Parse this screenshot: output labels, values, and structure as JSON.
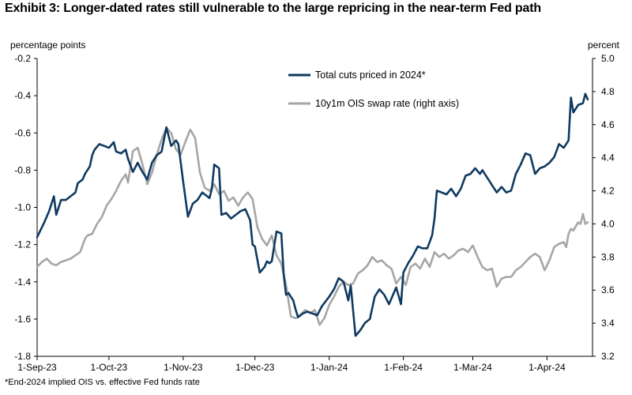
{
  "title": "Exhibit 3:  Longer-dated rates still vulnerable to the large repricing in the near-term Fed path",
  "footnote": "*End-2024 implied OIS vs. effective Fed funds rate",
  "colors": {
    "navy": "#0f3a61",
    "gray": "#a6a6a6",
    "axis": "#000000"
  },
  "chart_data": {
    "type": "line",
    "left_axis": {
      "label": "percentage points",
      "ylim": [
        -1.8,
        -0.2
      ],
      "ticks": [
        "-0.2",
        "-0.4",
        "-0.6",
        "-0.8",
        "-1.0",
        "-1.2",
        "-1.4",
        "-1.6",
        "-1.8"
      ]
    },
    "right_axis": {
      "label": "percent",
      "ylim": [
        3.2,
        5.0
      ],
      "ticks": [
        "5.0",
        "4.8",
        "4.6",
        "4.4",
        "4.2",
        "4.0",
        "3.8",
        "3.6",
        "3.4",
        "3.2"
      ]
    },
    "x_axis": {
      "type": "date",
      "range": [
        "2023-09-01",
        "2024-04-20"
      ],
      "ticks": [
        "1-Sep-23",
        "1-Oct-23",
        "1-Nov-23",
        "1-Dec-23",
        "1-Jan-24",
        "1-Feb-24",
        "1-Mar-24",
        "1-Apr-24"
      ]
    },
    "legend_position": "top-center",
    "grid": false,
    "series": [
      {
        "name": "Total cuts priced in 2024*",
        "axis": "left",
        "color": "#0f3a61",
        "points": [
          [
            "2023-09-01",
            -1.16
          ],
          [
            "2023-09-04",
            -1.08
          ],
          [
            "2023-09-06",
            -1.02
          ],
          [
            "2023-09-08",
            -0.94
          ],
          [
            "2023-09-09",
            -1.04
          ],
          [
            "2023-09-11",
            -0.96
          ],
          [
            "2023-09-13",
            -0.96
          ],
          [
            "2023-09-15",
            -0.94
          ],
          [
            "2023-09-17",
            -0.92
          ],
          [
            "2023-09-18",
            -0.87
          ],
          [
            "2023-09-20",
            -0.85
          ],
          [
            "2023-09-21",
            -0.82
          ],
          [
            "2023-09-23",
            -0.78
          ],
          [
            "2023-09-24",
            -0.72
          ],
          [
            "2023-09-25",
            -0.69
          ],
          [
            "2023-09-27",
            -0.66
          ],
          [
            "2023-09-29",
            -0.67
          ],
          [
            "2023-10-01",
            -0.68
          ],
          [
            "2023-10-03",
            -0.65
          ],
          [
            "2023-10-04",
            -0.7
          ],
          [
            "2023-10-06",
            -0.71
          ],
          [
            "2023-10-08",
            -0.69
          ],
          [
            "2023-10-09",
            -0.74
          ],
          [
            "2023-10-11",
            -0.81
          ],
          [
            "2023-10-13",
            -0.76
          ],
          [
            "2023-10-15",
            -0.81
          ],
          [
            "2023-10-17",
            -0.85
          ],
          [
            "2023-10-19",
            -0.76
          ],
          [
            "2023-10-21",
            -0.72
          ],
          [
            "2023-10-23",
            -0.7
          ],
          [
            "2023-10-25",
            -0.57
          ],
          [
            "2023-10-27",
            -0.67
          ],
          [
            "2023-10-29",
            -0.64
          ],
          [
            "2023-10-30",
            -0.66
          ],
          [
            "2023-11-01",
            -0.86
          ],
          [
            "2023-11-03",
            -1.05
          ],
          [
            "2023-11-05",
            -0.98
          ],
          [
            "2023-11-07",
            -0.96
          ],
          [
            "2023-11-09",
            -0.92
          ],
          [
            "2023-11-10",
            -0.93
          ],
          [
            "2023-11-12",
            -0.95
          ],
          [
            "2023-11-13",
            -0.9
          ],
          [
            "2023-11-14",
            -0.77
          ],
          [
            "2023-11-16",
            -0.79
          ],
          [
            "2023-11-17",
            -1.04
          ],
          [
            "2023-11-19",
            -1.03
          ],
          [
            "2023-11-21",
            -1.06
          ],
          [
            "2023-11-23",
            -1.04
          ],
          [
            "2023-11-25",
            -1.02
          ],
          [
            "2023-11-27",
            -1.01
          ],
          [
            "2023-11-29",
            -1.07
          ],
          [
            "2023-11-30",
            -1.2
          ],
          [
            "2023-12-01",
            -1.21
          ],
          [
            "2023-12-03",
            -1.35
          ],
          [
            "2023-12-05",
            -1.32
          ],
          [
            "2023-12-06",
            -1.29
          ],
          [
            "2023-12-07",
            -1.3
          ],
          [
            "2023-12-08",
            -1.29
          ],
          [
            "2023-12-10",
            -1.13
          ],
          [
            "2023-12-12",
            -1.14
          ],
          [
            "2023-12-13",
            -1.36
          ],
          [
            "2023-12-14",
            -1.47
          ],
          [
            "2023-12-15",
            -1.46
          ],
          [
            "2023-12-17",
            -1.5
          ],
          [
            "2023-12-18",
            -1.55
          ],
          [
            "2023-12-19",
            -1.59
          ],
          [
            "2023-12-21",
            -1.57
          ],
          [
            "2023-12-23",
            -1.56
          ],
          [
            "2023-12-25",
            -1.57
          ],
          [
            "2023-12-27",
            -1.58
          ],
          [
            "2023-12-29",
            -1.53
          ],
          [
            "2024-01-01",
            -1.48
          ],
          [
            "2024-01-03",
            -1.44
          ],
          [
            "2024-01-05",
            -1.38
          ],
          [
            "2024-01-07",
            -1.4
          ],
          [
            "2024-01-09",
            -1.5
          ],
          [
            "2024-01-10",
            -1.42
          ],
          [
            "2024-01-12",
            -1.69
          ],
          [
            "2024-01-14",
            -1.66
          ],
          [
            "2024-01-16",
            -1.62
          ],
          [
            "2024-01-18",
            -1.6
          ],
          [
            "2024-01-20",
            -1.48
          ],
          [
            "2024-01-22",
            -1.44
          ],
          [
            "2024-01-24",
            -1.47
          ],
          [
            "2024-01-26",
            -1.52
          ],
          [
            "2024-01-29",
            -1.43
          ],
          [
            "2024-01-31",
            -1.52
          ],
          [
            "2024-02-01",
            -1.35
          ],
          [
            "2024-02-03",
            -1.3
          ],
          [
            "2024-02-05",
            -1.26
          ],
          [
            "2024-02-07",
            -1.21
          ],
          [
            "2024-02-09",
            -1.22
          ],
          [
            "2024-02-11",
            -1.22
          ],
          [
            "2024-02-13",
            -1.15
          ],
          [
            "2024-02-14",
            -1.06
          ],
          [
            "2024-02-15",
            -0.91
          ],
          [
            "2024-02-17",
            -0.92
          ],
          [
            "2024-02-19",
            -0.93
          ],
          [
            "2024-02-21",
            -0.9
          ],
          [
            "2024-02-23",
            -0.94
          ],
          [
            "2024-02-25",
            -0.9
          ],
          [
            "2024-02-27",
            -0.83
          ],
          [
            "2024-02-29",
            -0.82
          ],
          [
            "2024-03-02",
            -0.79
          ],
          [
            "2024-03-04",
            -0.82
          ],
          [
            "2024-03-05",
            -0.8
          ],
          [
            "2024-03-07",
            -0.84
          ],
          [
            "2024-03-09",
            -0.88
          ],
          [
            "2024-03-11",
            -0.92
          ],
          [
            "2024-03-13",
            -0.89
          ],
          [
            "2024-03-15",
            -0.92
          ],
          [
            "2024-03-17",
            -0.91
          ],
          [
            "2024-03-19",
            -0.82
          ],
          [
            "2024-03-21",
            -0.77
          ],
          [
            "2024-03-23",
            -0.71
          ],
          [
            "2024-03-25",
            -0.72
          ],
          [
            "2024-03-27",
            -0.82
          ],
          [
            "2024-03-29",
            -0.79
          ],
          [
            "2024-03-31",
            -0.78
          ],
          [
            "2024-04-02",
            -0.76
          ],
          [
            "2024-04-04",
            -0.73
          ],
          [
            "2024-04-06",
            -0.66
          ],
          [
            "2024-04-08",
            -0.68
          ],
          [
            "2024-04-10",
            -0.64
          ],
          [
            "2024-04-11",
            -0.41
          ],
          [
            "2024-04-12",
            -0.49
          ],
          [
            "2024-04-14",
            -0.45
          ],
          [
            "2024-04-16",
            -0.44
          ],
          [
            "2024-04-17",
            -0.39
          ],
          [
            "2024-04-18",
            -0.42
          ]
        ]
      },
      {
        "name": "10y1m OIS swap rate (right axis)",
        "axis": "right",
        "color": "#a6a6a6",
        "points": [
          [
            "2023-09-01",
            3.74
          ],
          [
            "2023-09-03",
            3.77
          ],
          [
            "2023-09-05",
            3.79
          ],
          [
            "2023-09-07",
            3.76
          ],
          [
            "2023-09-09",
            3.75
          ],
          [
            "2023-09-11",
            3.77
          ],
          [
            "2023-09-13",
            3.78
          ],
          [
            "2023-09-15",
            3.79
          ],
          [
            "2023-09-17",
            3.81
          ],
          [
            "2023-09-19",
            3.83
          ],
          [
            "2023-09-21",
            3.91
          ],
          [
            "2023-09-22",
            3.93
          ],
          [
            "2023-09-24",
            3.94
          ],
          [
            "2023-09-26",
            4.0
          ],
          [
            "2023-09-28",
            4.04
          ],
          [
            "2023-09-30",
            4.11
          ],
          [
            "2023-10-02",
            4.15
          ],
          [
            "2023-10-04",
            4.2
          ],
          [
            "2023-10-06",
            4.26
          ],
          [
            "2023-10-08",
            4.3
          ],
          [
            "2023-10-09",
            4.25
          ],
          [
            "2023-10-11",
            4.44
          ],
          [
            "2023-10-13",
            4.46
          ],
          [
            "2023-10-15",
            4.36
          ],
          [
            "2023-10-17",
            4.24
          ],
          [
            "2023-10-19",
            4.31
          ],
          [
            "2023-10-21",
            4.42
          ],
          [
            "2023-10-23",
            4.51
          ],
          [
            "2023-10-25",
            4.58
          ],
          [
            "2023-10-27",
            4.55
          ],
          [
            "2023-10-29",
            4.45
          ],
          [
            "2023-10-31",
            4.42
          ],
          [
            "2023-11-02",
            4.5
          ],
          [
            "2023-11-04",
            4.57
          ],
          [
            "2023-11-06",
            4.52
          ],
          [
            "2023-11-08",
            4.31
          ],
          [
            "2023-11-10",
            4.22
          ],
          [
            "2023-11-12",
            4.2
          ],
          [
            "2023-11-14",
            4.24
          ],
          [
            "2023-11-16",
            4.18
          ],
          [
            "2023-11-18",
            4.2
          ],
          [
            "2023-11-20",
            4.14
          ],
          [
            "2023-11-22",
            4.16
          ],
          [
            "2023-11-24",
            4.11
          ],
          [
            "2023-11-26",
            4.16
          ],
          [
            "2023-11-28",
            4.19
          ],
          [
            "2023-11-30",
            4.15
          ],
          [
            "2023-12-02",
            3.98
          ],
          [
            "2023-12-04",
            3.91
          ],
          [
            "2023-12-06",
            3.87
          ],
          [
            "2023-12-08",
            3.93
          ],
          [
            "2023-12-10",
            3.81
          ],
          [
            "2023-12-12",
            3.76
          ],
          [
            "2023-12-14",
            3.63
          ],
          [
            "2023-12-16",
            3.44
          ],
          [
            "2023-12-18",
            3.43
          ],
          [
            "2023-12-20",
            3.45
          ],
          [
            "2023-12-22",
            3.48
          ],
          [
            "2023-12-24",
            3.46
          ],
          [
            "2023-12-26",
            3.48
          ],
          [
            "2023-12-28",
            3.39
          ],
          [
            "2023-12-30",
            3.43
          ],
          [
            "2024-01-01",
            3.51
          ],
          [
            "2024-01-03",
            3.56
          ],
          [
            "2024-01-05",
            3.62
          ],
          [
            "2024-01-07",
            3.65
          ],
          [
            "2024-01-09",
            3.63
          ],
          [
            "2024-01-11",
            3.64
          ],
          [
            "2024-01-13",
            3.7
          ],
          [
            "2024-01-15",
            3.72
          ],
          [
            "2024-01-17",
            3.75
          ],
          [
            "2024-01-19",
            3.8
          ],
          [
            "2024-01-21",
            3.77
          ],
          [
            "2024-01-23",
            3.78
          ],
          [
            "2024-01-25",
            3.75
          ],
          [
            "2024-01-27",
            3.73
          ],
          [
            "2024-01-29",
            3.64
          ],
          [
            "2024-01-31",
            3.68
          ],
          [
            "2024-02-02",
            3.63
          ],
          [
            "2024-02-04",
            3.74
          ],
          [
            "2024-02-06",
            3.76
          ],
          [
            "2024-02-08",
            3.73
          ],
          [
            "2024-02-10",
            3.79
          ],
          [
            "2024-02-12",
            3.74
          ],
          [
            "2024-02-14",
            3.83
          ],
          [
            "2024-02-16",
            3.8
          ],
          [
            "2024-02-18",
            3.82
          ],
          [
            "2024-02-20",
            3.79
          ],
          [
            "2024-02-22",
            3.81
          ],
          [
            "2024-02-24",
            3.84
          ],
          [
            "2024-02-26",
            3.85
          ],
          [
            "2024-02-28",
            3.83
          ],
          [
            "2024-03-01",
            3.87
          ],
          [
            "2024-03-03",
            3.8
          ],
          [
            "2024-03-05",
            3.74
          ],
          [
            "2024-03-07",
            3.72
          ],
          [
            "2024-03-09",
            3.73
          ],
          [
            "2024-03-11",
            3.62
          ],
          [
            "2024-03-13",
            3.67
          ],
          [
            "2024-03-15",
            3.68
          ],
          [
            "2024-03-17",
            3.68
          ],
          [
            "2024-03-19",
            3.72
          ],
          [
            "2024-03-21",
            3.74
          ],
          [
            "2024-03-23",
            3.77
          ],
          [
            "2024-03-25",
            3.8
          ],
          [
            "2024-03-27",
            3.82
          ],
          [
            "2024-03-29",
            3.8
          ],
          [
            "2024-03-31",
            3.72
          ],
          [
            "2024-04-02",
            3.78
          ],
          [
            "2024-04-04",
            3.86
          ],
          [
            "2024-04-06",
            3.88
          ],
          [
            "2024-04-08",
            3.89
          ],
          [
            "2024-04-09",
            3.86
          ],
          [
            "2024-04-10",
            3.94
          ],
          [
            "2024-04-11",
            3.97
          ],
          [
            "2024-04-12",
            3.96
          ],
          [
            "2024-04-14",
            4.01
          ],
          [
            "2024-04-15",
            4.0
          ],
          [
            "2024-04-16",
            4.06
          ],
          [
            "2024-04-17",
            4.0
          ],
          [
            "2024-04-18",
            4.01
          ]
        ]
      }
    ]
  }
}
